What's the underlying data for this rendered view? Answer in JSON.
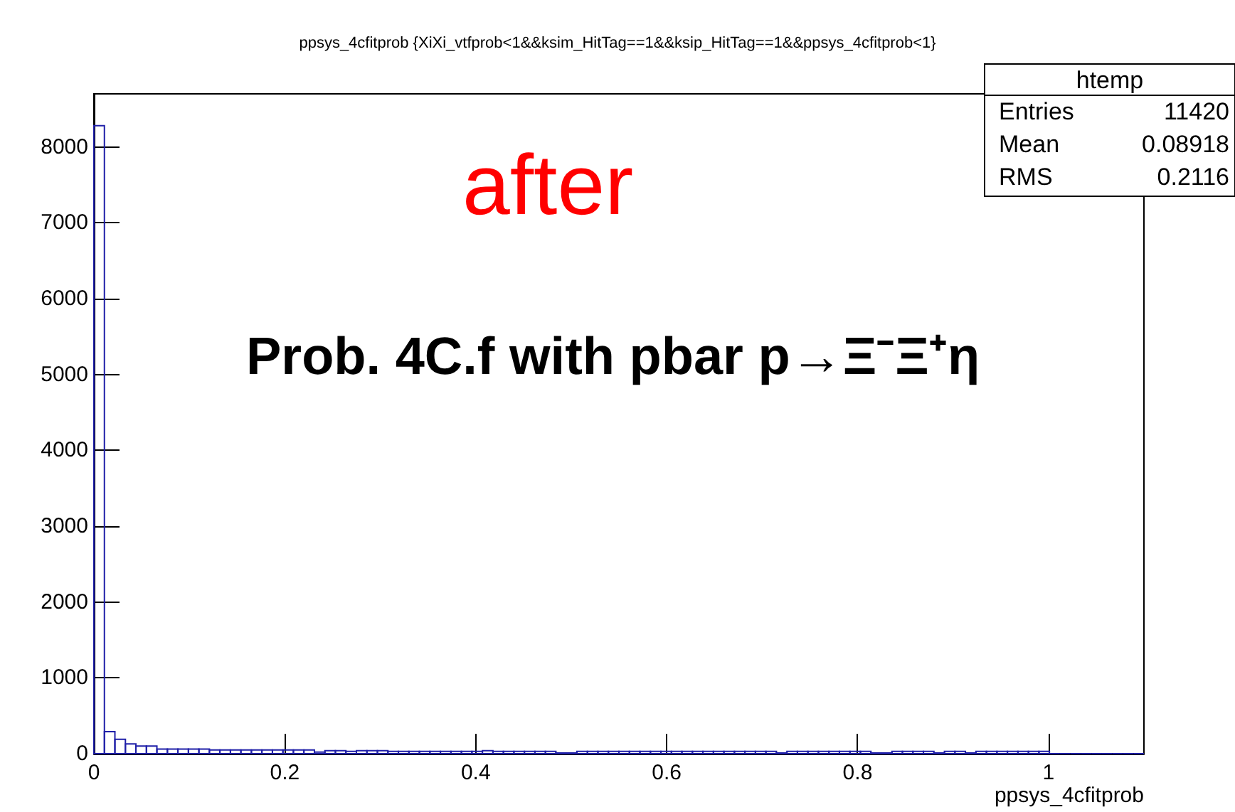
{
  "chart_data": {
    "type": "histogram",
    "title": "ppsys_4cfitprob {XiXi_vtfprob<1&&ksim_HitTag==1&&ksip_HitTag==1&&ppsys_4cfitprob<1}",
    "xlabel": "ppsys_4cfitprob",
    "bins": [
      0,
      0.011,
      0.022,
      0.033,
      0.044,
      0.055,
      0.066,
      0.077,
      0.088,
      0.099,
      0.11,
      0.121,
      0.132,
      0.143,
      0.154,
      0.165,
      0.176,
      0.187,
      0.198,
      0.209,
      0.22,
      0.231,
      0.242,
      0.253,
      0.264,
      0.275,
      0.286,
      0.297,
      0.308,
      0.319,
      0.33,
      0.341,
      0.352,
      0.363,
      0.374,
      0.385,
      0.396,
      0.407,
      0.418,
      0.429,
      0.44,
      0.451,
      0.462,
      0.473,
      0.484,
      0.495,
      0.506,
      0.517,
      0.528,
      0.539,
      0.55,
      0.561,
      0.572,
      0.583,
      0.594,
      0.605,
      0.616,
      0.627,
      0.638,
      0.649,
      0.66,
      0.671,
      0.682,
      0.693,
      0.704,
      0.715,
      0.726,
      0.737,
      0.748,
      0.759,
      0.77,
      0.781,
      0.792,
      0.803,
      0.814,
      0.825,
      0.836,
      0.847,
      0.858,
      0.869,
      0.88,
      0.891,
      0.902,
      0.913,
      0.924,
      0.935,
      0.946,
      0.957,
      0.968,
      0.979,
      0.99,
      1.001,
      1.012,
      1.023,
      1.034,
      1.045,
      1.056,
      1.067,
      1.078,
      1.089,
      1.1
    ],
    "values": [
      8280,
      290,
      190,
      130,
      100,
      100,
      60,
      60,
      60,
      60,
      60,
      50,
      50,
      50,
      50,
      50,
      50,
      50,
      50,
      50,
      50,
      20,
      40,
      40,
      30,
      40,
      40,
      40,
      30,
      30,
      30,
      30,
      30,
      30,
      30,
      30,
      30,
      40,
      30,
      30,
      30,
      30,
      30,
      30,
      10,
      10,
      30,
      30,
      30,
      30,
      30,
      30,
      30,
      30,
      30,
      30,
      30,
      30,
      30,
      30,
      30,
      30,
      30,
      30,
      30,
      10,
      30,
      30,
      30,
      30,
      30,
      30,
      30,
      30,
      10,
      10,
      30,
      30,
      30,
      30,
      10,
      30,
      30,
      10,
      30,
      30,
      30,
      30,
      30,
      30,
      30,
      0,
      0,
      0,
      0,
      0,
      0,
      0,
      0,
      0
    ],
    "color": "#1f1fa8",
    "xlim": [
      0,
      1.1
    ],
    "ylim": [
      0,
      8700
    ],
    "xticks": [
      0,
      0.2,
      0.4,
      0.6,
      0.8,
      1
    ],
    "yticks": [
      0,
      1000,
      2000,
      3000,
      4000,
      5000,
      6000,
      7000,
      8000
    ],
    "grid": false,
    "annotations": [
      "after",
      "Prob. 4C.f with pbar p→Ξ⁻Ξ⁺η",
      "htemp",
      "Entries 11420",
      "Mean 0.08918",
      "RMS 0.2116"
    ]
  }
}
